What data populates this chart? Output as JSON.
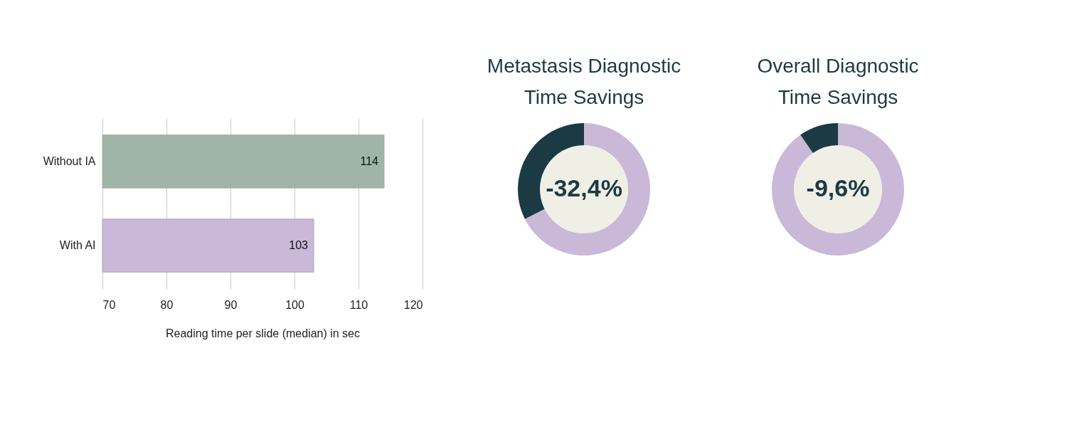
{
  "chart_data": [
    {
      "type": "bar",
      "orientation": "horizontal",
      "categories": [
        "Without IA",
        "With AI"
      ],
      "values": [
        114,
        103
      ],
      "colors": [
        "#9fb5a8",
        "#c9b8d8"
      ],
      "xlim": [
        70,
        120
      ],
      "xticks": [
        70,
        80,
        90,
        100,
        110,
        120
      ],
      "grid": "x",
      "data_labels": true,
      "xlabel": "Reading time per slide (median) in sec"
    },
    {
      "type": "donut",
      "title": "Metastasis Diagnostic Time Savings",
      "categories": [
        null,
        null
      ],
      "values": [
        67.6,
        32.4
      ],
      "colors": [
        "#c9b8d8",
        "#1b3a44"
      ],
      "annotations": [
        "-32,4%"
      ]
    },
    {
      "type": "donut",
      "title": "Overall Diagnostic Time Savings",
      "categories": [
        null,
        null
      ],
      "values": [
        90.4,
        9.6
      ],
      "colors": [
        "#c9b8d8",
        "#1b3a44"
      ],
      "annotations": [
        "-9,6%"
      ]
    }
  ]
}
